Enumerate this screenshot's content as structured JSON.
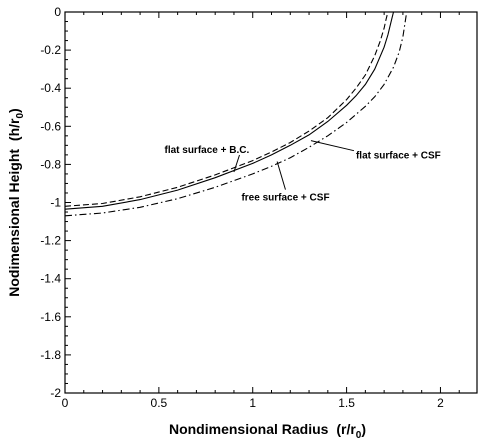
{
  "chart_data": {
    "type": "line",
    "xlabel": "Nondimensional Radius",
    "xlabel_suffix": "(r/r",
    "xlabel_sub": "0",
    "xlabel_close": ")",
    "ylabel": "Nodimensional Height",
    "ylabel_suffix": "(h/r",
    "ylabel_sub": "0",
    "ylabel_close": ")",
    "xlim": [
      0,
      2.2
    ],
    "ylim": [
      -2,
      0
    ],
    "x_ticks": [
      0,
      0.5,
      1,
      1.5,
      2
    ],
    "x_tick_labels": [
      "0",
      "0.5",
      "1",
      "1.5",
      "2"
    ],
    "y_ticks": [
      0,
      -0.2,
      -0.4,
      -0.6,
      -0.8,
      -1,
      -1.2,
      -1.4,
      -1.6,
      -1.8,
      -2
    ],
    "y_tick_labels": [
      "0",
      "-0.2",
      "-0.4",
      "-0.6",
      "-0.8",
      "-1",
      "-1.2",
      "-1.4",
      "-1.6",
      "-1.8",
      "-2"
    ],
    "grid": false,
    "series": [
      {
        "style": "solid",
        "x": [
          0,
          0.2,
          0.4,
          0.6,
          0.8,
          1.0,
          1.1,
          1.2,
          1.3,
          1.4,
          1.5,
          1.55,
          1.6,
          1.65,
          1.7,
          1.72,
          1.74,
          1.75
        ],
        "y": [
          -1.035,
          -1.02,
          -0.985,
          -0.935,
          -0.87,
          -0.795,
          -0.75,
          -0.7,
          -0.645,
          -0.575,
          -0.49,
          -0.44,
          -0.38,
          -0.3,
          -0.185,
          -0.12,
          -0.04,
          0
        ]
      },
      {
        "style": "dash",
        "x": [
          0,
          0.2,
          0.4,
          0.6,
          0.8,
          1.0,
          1.1,
          1.2,
          1.3,
          1.4,
          1.5,
          1.55,
          1.6,
          1.65,
          1.68,
          1.7,
          1.71,
          1.72
        ],
        "y": [
          -1.02,
          -1.005,
          -0.97,
          -0.92,
          -0.855,
          -0.78,
          -0.735,
          -0.685,
          -0.625,
          -0.555,
          -0.46,
          -0.4,
          -0.33,
          -0.23,
          -0.15,
          -0.085,
          -0.04,
          0
        ]
      },
      {
        "style": "dashdot",
        "x": [
          0,
          0.2,
          0.4,
          0.6,
          0.8,
          1.0,
          1.1,
          1.2,
          1.3,
          1.4,
          1.5,
          1.6,
          1.65,
          1.7,
          1.75,
          1.78,
          1.8,
          1.82
        ],
        "y": [
          -1.07,
          -1.055,
          -1.025,
          -0.98,
          -0.92,
          -0.85,
          -0.81,
          -0.765,
          -0.71,
          -0.65,
          -0.58,
          -0.495,
          -0.445,
          -0.38,
          -0.29,
          -0.21,
          -0.13,
          0
        ]
      }
    ],
    "annotations": [
      {
        "text": "flat surface + B.C.",
        "tx": 0.53,
        "ty": -0.74,
        "ax": 0.9,
        "ay": -0.84
      },
      {
        "text": "flat surface + CSF",
        "tx": 1.55,
        "ty": -0.77,
        "ax": 1.31,
        "ay": -0.675
      },
      {
        "text": "free surface + CSF",
        "tx": 0.94,
        "ty": -0.99,
        "ax": 1.13,
        "ay": -0.785
      }
    ]
  }
}
